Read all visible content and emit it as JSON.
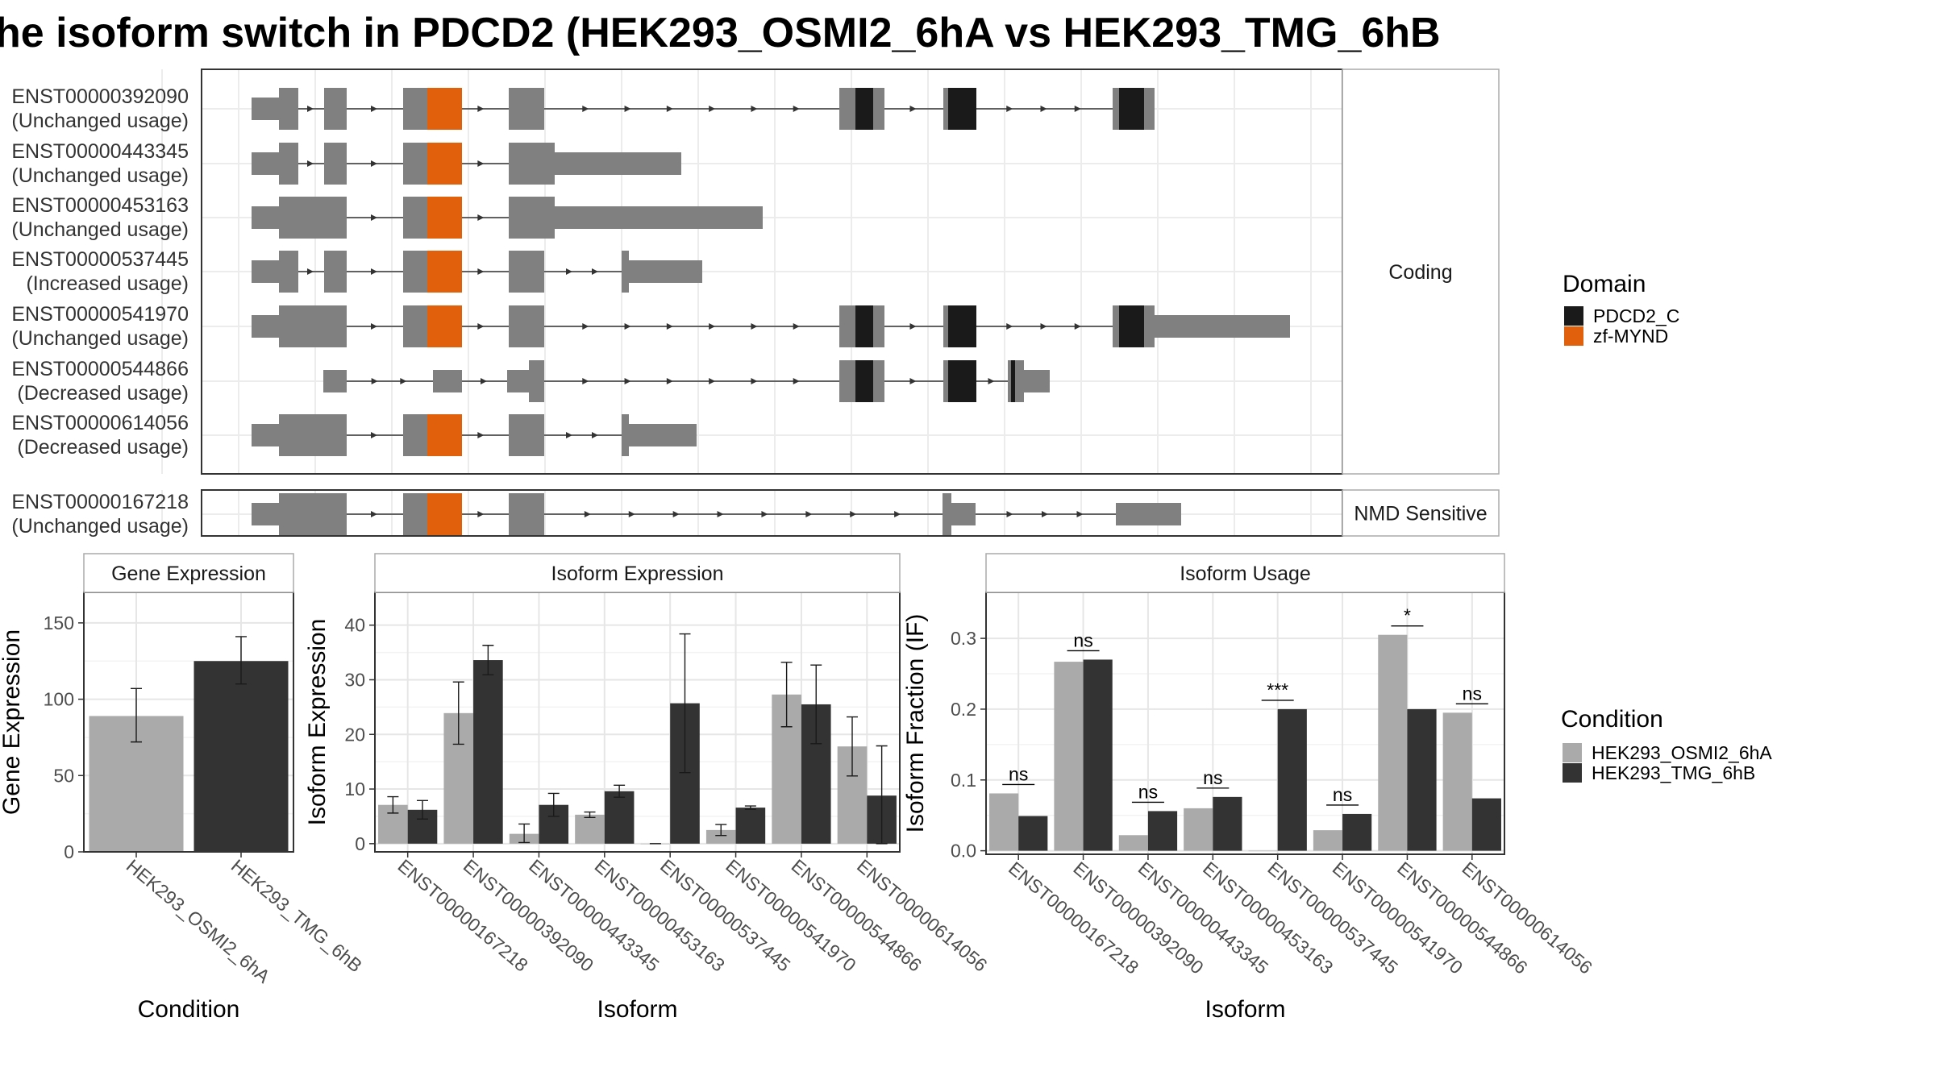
{
  "title": "he isoform switch in PDCD2 (HEK293_OSMI2_6hA vs HEK293_TMG_6hB",
  "colors": {
    "exon": "#808080",
    "PDCD2_C": "#1a1a1a",
    "zf-MYND": "#e0600b",
    "cond_a": "#aaaaaa",
    "cond_b": "#333333"
  },
  "structure": {
    "groups": [
      {
        "label": "Coding",
        "isoforms": [
          {
            "id": "ENST00000392090",
            "usage": "(Unchanged usage)"
          },
          {
            "id": "ENST00000443345",
            "usage": "(Unchanged usage)"
          },
          {
            "id": "ENST00000453163",
            "usage": "(Unchanged usage)"
          },
          {
            "id": "ENST00000537445",
            "usage": "(Increased usage)"
          },
          {
            "id": "ENST00000541970",
            "usage": "(Unchanged usage)"
          },
          {
            "id": "ENST00000544866",
            "usage": "(Decreased usage)"
          },
          {
            "id": "ENST00000614056",
            "usage": "(Decreased usage)"
          }
        ]
      },
      {
        "label": "NMD Sensitive",
        "isoforms": [
          {
            "id": "ENST00000167218",
            "usage": "(Unchanged usage)"
          }
        ]
      }
    ],
    "domain_legend": {
      "title": "Domain",
      "items": [
        "PDCD2_C",
        "zf-MYND"
      ]
    }
  },
  "chart_data": [
    {
      "type": "bar",
      "panel": "Gene Expression",
      "categories": [
        "HEK293_OSMI2_6hA",
        "HEK293_TMG_6hB"
      ],
      "values": [
        89,
        125
      ],
      "error": [
        [
          72,
          107
        ],
        [
          110,
          141
        ]
      ],
      "xlabel": "Condition",
      "ylabel": "Gene Expression",
      "ylim": [
        0,
        170
      ],
      "yticks": [
        0,
        50,
        100,
        150
      ]
    },
    {
      "type": "bar",
      "panel": "Isoform Expression",
      "categories": [
        "ENST00000167218",
        "ENST00000392090",
        "ENST00000443345",
        "ENST00000453163",
        "ENST00000537445",
        "ENST00000541970",
        "ENST00000544866",
        "ENST00000614056"
      ],
      "series": [
        {
          "name": "HEK293_OSMI2_6hA",
          "values": [
            7.1,
            23.9,
            1.8,
            5.3,
            0.0,
            2.5,
            27.3,
            17.8
          ],
          "error": [
            [
              5.6,
              8.6
            ],
            [
              18.2,
              29.6
            ],
            [
              0.2,
              3.6
            ],
            [
              4.8,
              5.8
            ],
            [
              0.0,
              0.0
            ],
            [
              1.5,
              3.5
            ],
            [
              21.4,
              33.2
            ],
            [
              12.4,
              23.2
            ]
          ]
        },
        {
          "name": "HEK293_TMG_6hB",
          "values": [
            6.2,
            33.6,
            7.1,
            9.6,
            25.7,
            6.6,
            25.5,
            8.8
          ],
          "error": [
            [
              4.5,
              7.9
            ],
            [
              30.9,
              36.3
            ],
            [
              5.0,
              9.2
            ],
            [
              8.5,
              10.7
            ],
            [
              13.0,
              38.4
            ],
            [
              6.3,
              6.9
            ],
            [
              18.3,
              32.7
            ],
            [
              0.0,
              17.9
            ]
          ]
        }
      ],
      "xlabel": "Isoform",
      "ylabel": "Isoform Expression",
      "ylim": [
        -1.5,
        46
      ],
      "yticks": [
        0,
        10,
        20,
        30,
        40
      ]
    },
    {
      "type": "bar",
      "panel": "Isoform Usage",
      "categories": [
        "ENST00000167218",
        "ENST00000392090",
        "ENST00000443345",
        "ENST00000453163",
        "ENST00000537445",
        "ENST00000541970",
        "ENST00000544866",
        "ENST00000614056"
      ],
      "series": [
        {
          "name": "HEK293_OSMI2_6hA",
          "values": [
            0.081,
            0.267,
            0.022,
            0.06,
            0.0,
            0.029,
            0.305,
            0.195
          ]
        },
        {
          "name": "HEK293_TMG_6hB",
          "values": [
            0.049,
            0.27,
            0.056,
            0.076,
            0.2,
            0.052,
            0.2,
            0.074
          ]
        }
      ],
      "significance": [
        "ns",
        "ns",
        "ns",
        "ns",
        "***",
        "ns",
        "*",
        "ns"
      ],
      "xlabel": "Isoform",
      "ylabel": "Isoform Fraction (IF)",
      "ylim": [
        -0.005,
        0.365
      ],
      "yticks": [
        0.0,
        0.1,
        0.2,
        0.3
      ]
    }
  ],
  "condition_legend": {
    "title": "Condition",
    "items": [
      "HEK293_OSMI2_6hA",
      "HEK293_TMG_6hB"
    ]
  }
}
